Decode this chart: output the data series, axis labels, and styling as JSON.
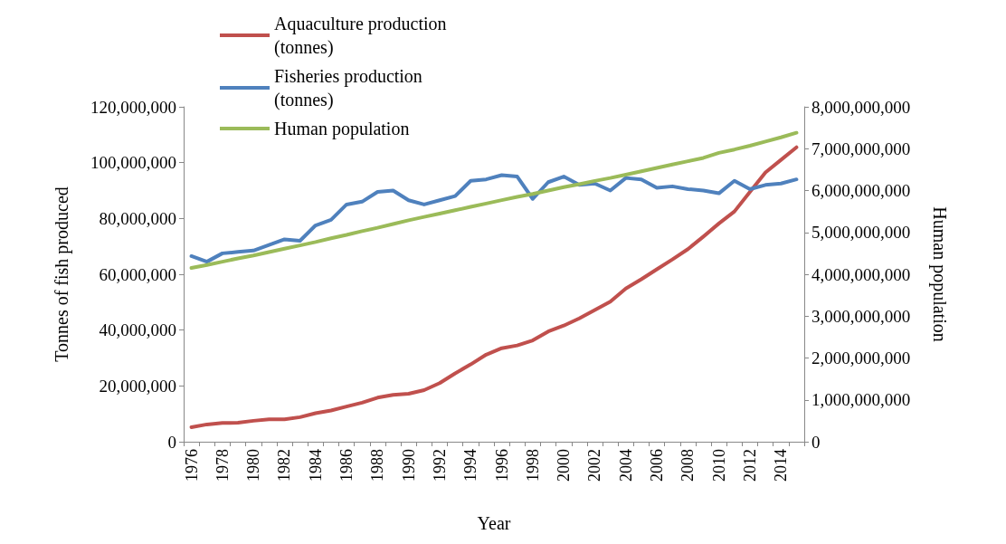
{
  "chart_data": {
    "type": "line",
    "xlabel": "Year",
    "ylabel": "Tonnes of fish produced",
    "y2label": "Human population",
    "categories": [
      "1976",
      null,
      "1978",
      null,
      "1980",
      null,
      "1982",
      null,
      "1984",
      null,
      "1986",
      null,
      "1988",
      null,
      "1990",
      null,
      "1992",
      null,
      "1994",
      null,
      "1996",
      null,
      "1998",
      null,
      "2000",
      null,
      "2002",
      null,
      "2004",
      null,
      "2006",
      null,
      "2008",
      null,
      "2010",
      null,
      "2012",
      null,
      "2014",
      null
    ],
    "series": [
      {
        "name": "Aquaculture production (tonnes)",
        "color": "#c0504d",
        "values": [
          5200000,
          6200000,
          6700000,
          6800000,
          7500000,
          8000000,
          8000000,
          8800000,
          10200000,
          11200000,
          12600000,
          14000000,
          15800000,
          16800000,
          17200000,
          18500000,
          21000000,
          24500000,
          27700000,
          31200000,
          33500000,
          34500000,
          36300000,
          39500000,
          41600000,
          44200000,
          47200000,
          50200000,
          54900000,
          58200000,
          61800000,
          65300000,
          69000000,
          73500000,
          78200000,
          82500000,
          89500000,
          96500000,
          101000000,
          105500000
        ]
      },
      {
        "name": "Fisheries production (tonnes)",
        "color": "#4f81bd",
        "values": [
          66500000,
          64500000,
          67500000,
          68000000,
          68500000,
          70500000,
          72500000,
          72000000,
          77500000,
          79500000,
          85000000,
          86000000,
          89500000,
          90000000,
          86500000,
          85000000,
          86500000,
          88000000,
          93500000,
          94000000,
          95500000,
          95000000,
          87000000,
          93000000,
          95000000,
          92000000,
          92500000,
          90000000,
          94500000,
          94000000,
          91000000,
          91500000,
          90500000,
          90000000,
          89000000,
          93500000,
          90500000,
          92000000,
          92500000,
          94000000
        ]
      },
      {
        "name": "Human population",
        "color": "#9bbb59",
        "axis": "y2",
        "values": [
          4150000000,
          4220000000,
          4300000000,
          4380000000,
          4450000000,
          4530000000,
          4610000000,
          4690000000,
          4770000000,
          4860000000,
          4940000000,
          5030000000,
          5110000000,
          5200000000,
          5290000000,
          5370000000,
          5450000000,
          5530000000,
          5610000000,
          5690000000,
          5770000000,
          5850000000,
          5920000000,
          6000000000,
          6080000000,
          6150000000,
          6230000000,
          6300000000,
          6380000000,
          6460000000,
          6540000000,
          6620000000,
          6700000000,
          6780000000,
          6900000000,
          6980000000,
          7070000000,
          7170000000,
          7270000000,
          7380000000
        ]
      }
    ],
    "ylim": [
      0,
      120000000
    ],
    "yticks": [
      0,
      {
        "value": 20000000,
        "label": "20,000,000"
      },
      {
        "value": 40000000,
        "label": "40,000,000"
      },
      {
        "value": 60000000,
        "label": "60,000,000"
      },
      {
        "value": 80000000,
        "label": "80,000,000"
      },
      {
        "value": 100000000,
        "label": "100,000,000"
      },
      {
        "value": 120000000,
        "label": "120,000,000"
      }
    ],
    "y2lim": [
      0,
      8000000000
    ],
    "y2ticks": [
      0,
      {
        "value": 1000000000,
        "label": "1,000,000,000"
      },
      {
        "value": 2000000000,
        "label": "2,000,000,000"
      },
      {
        "value": 3000000000,
        "label": "3,000,000,000"
      },
      {
        "value": 4000000000,
        "label": "4,000,000,000"
      },
      {
        "value": 5000000000,
        "label": "5,000,000,000"
      },
      {
        "value": 6000000000,
        "label": "6,000,000,000"
      },
      {
        "value": 7000000000,
        "label": "7,000,000,000"
      },
      {
        "value": 8000000000,
        "label": "8,000,000,000"
      }
    ],
    "grid": false,
    "legend": "top",
    "marker": "none",
    "line_style": "solid"
  }
}
